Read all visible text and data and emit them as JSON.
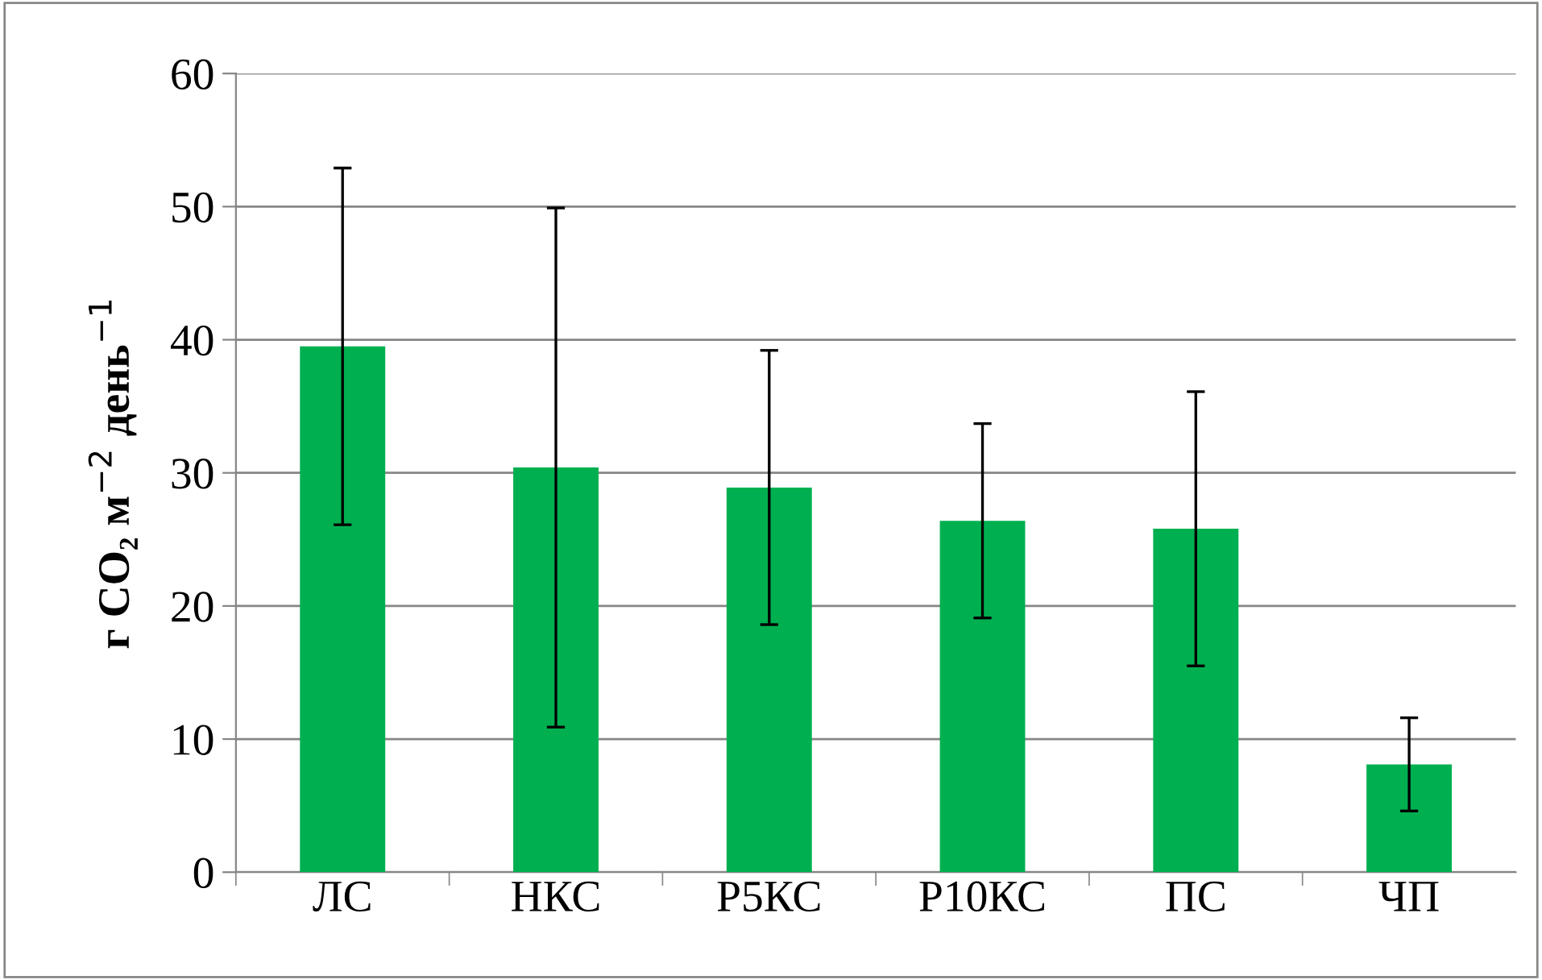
{
  "chart_data": {
    "type": "bar",
    "ylabel": "г CO₂ м$^{−2}$ день$^{−1}$",
    "categories": [
      "ЛС",
      "НКС",
      "Р5КС",
      "Р10КС",
      "ПС",
      "ЧП"
    ],
    "values": [
      39.5,
      30.4,
      28.9,
      26.4,
      25.8,
      8.1
    ],
    "errors": [
      13.4,
      19.5,
      10.3,
      7.3,
      10.3,
      3.5
    ],
    "color": "#00b050",
    "ylim": [
      0,
      60
    ],
    "yticks": [
      0,
      10,
      20,
      30,
      40,
      50,
      60
    ],
    "grid": "y"
  }
}
